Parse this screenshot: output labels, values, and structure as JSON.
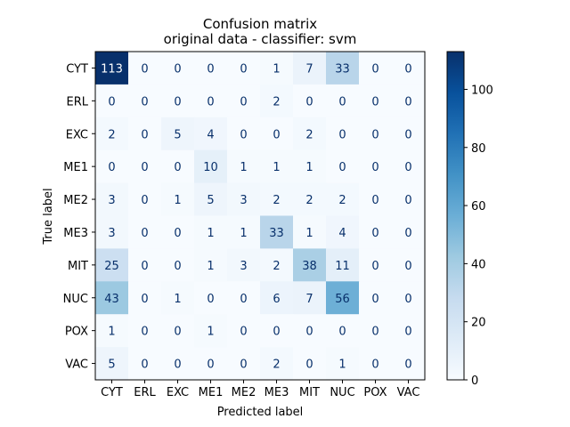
{
  "chart_data": {
    "type": "heatmap",
    "title_line1": "Confusion matrix",
    "title_line2": "original data - classifier: svm",
    "xlabel": "Predicted label",
    "ylabel": "True label",
    "x_categories": [
      "CYT",
      "ERL",
      "EXC",
      "ME1",
      "ME2",
      "ME3",
      "MIT",
      "NUC",
      "POX",
      "VAC"
    ],
    "y_categories": [
      "CYT",
      "ERL",
      "EXC",
      "ME1",
      "ME2",
      "ME3",
      "MIT",
      "NUC",
      "POX",
      "VAC"
    ],
    "values": [
      [
        113,
        0,
        0,
        0,
        0,
        1,
        7,
        33,
        0,
        0
      ],
      [
        0,
        0,
        0,
        0,
        0,
        2,
        0,
        0,
        0,
        0
      ],
      [
        2,
        0,
        5,
        4,
        0,
        0,
        2,
        0,
        0,
        0
      ],
      [
        0,
        0,
        0,
        10,
        1,
        1,
        1,
        0,
        0,
        0
      ],
      [
        3,
        0,
        1,
        5,
        3,
        2,
        2,
        2,
        0,
        0
      ],
      [
        3,
        0,
        0,
        1,
        1,
        33,
        1,
        4,
        0,
        0
      ],
      [
        25,
        0,
        0,
        1,
        3,
        2,
        38,
        11,
        0,
        0
      ],
      [
        43,
        0,
        1,
        0,
        0,
        6,
        7,
        56,
        0,
        0
      ],
      [
        1,
        0,
        0,
        1,
        0,
        0,
        0,
        0,
        0,
        0
      ],
      [
        5,
        0,
        0,
        0,
        0,
        2,
        0,
        1,
        0,
        0
      ]
    ],
    "colormap": "Blues",
    "value_range": [
      0,
      113
    ],
    "colorbar_ticks": [
      0,
      20,
      40,
      60,
      80,
      100
    ],
    "grid": false
  }
}
